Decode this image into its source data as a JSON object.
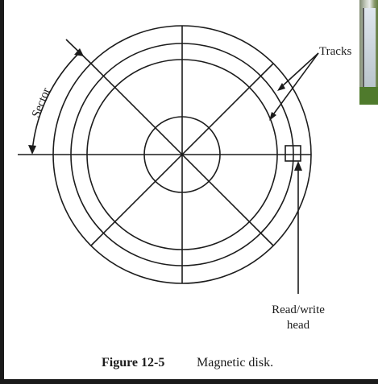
{
  "labels": {
    "sector": "Sector",
    "tracks": "Tracks",
    "head_line1": "Read/write",
    "head_line2": "head"
  },
  "caption": {
    "number": "Figure 12-5",
    "title": "Magnetic disk."
  },
  "colors": {
    "line": "#1c1c1c",
    "background": "#ffffff"
  }
}
